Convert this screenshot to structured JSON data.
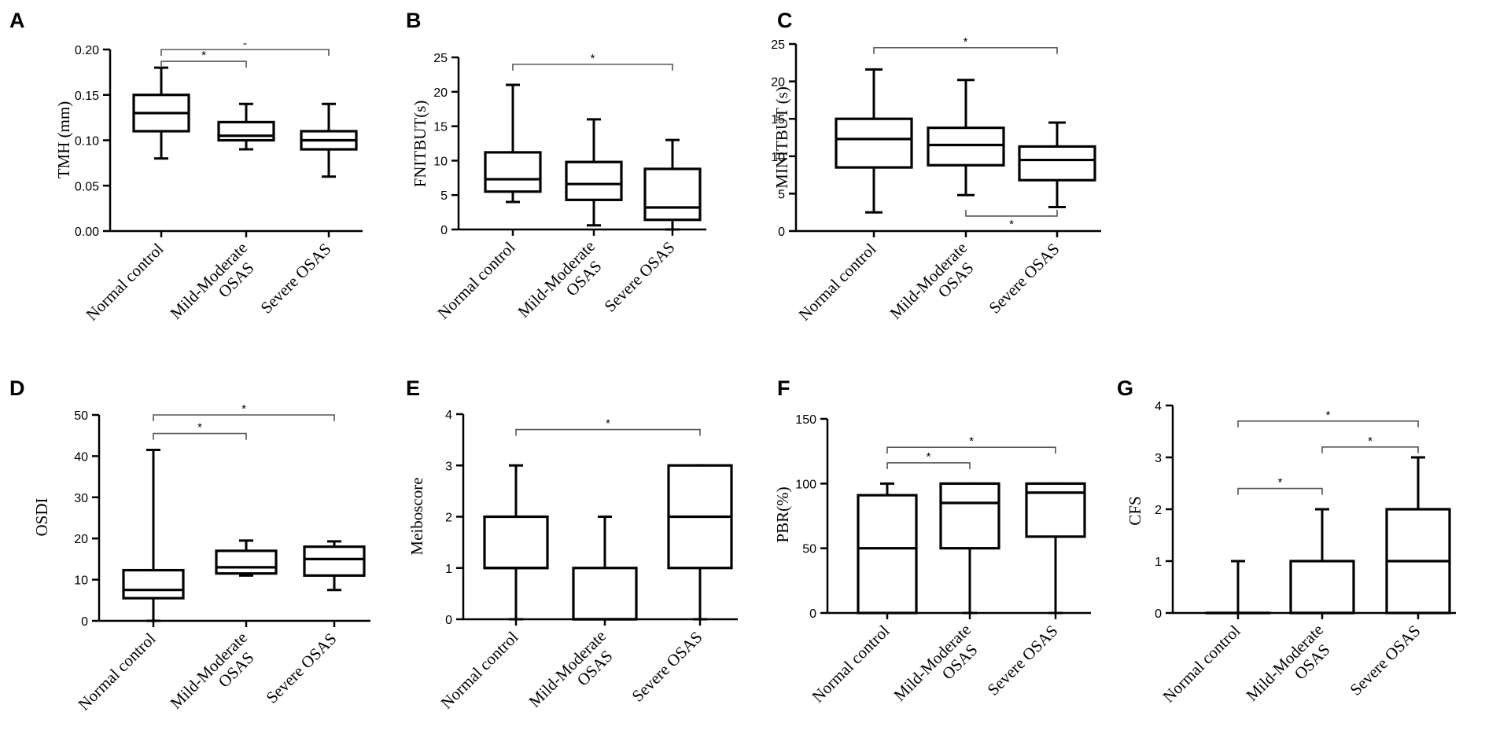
{
  "figure": {
    "categories": [
      "Normal control",
      "Mild-Moderate OSAS",
      "Severe OSAS"
    ],
    "category_label_lines": [
      [
        "Normal control"
      ],
      [
        "Mild-Moderate",
        "OSAS"
      ],
      [
        "Severe OSAS"
      ]
    ]
  },
  "chart_data": [
    {
      "panel": "A",
      "type": "box",
      "ylabel": "TMH (mm)",
      "ylim": [
        0,
        0.2
      ],
      "yticks": [
        0,
        0.05,
        0.1,
        0.15,
        0.2
      ],
      "ytick_labels": [
        "0.00",
        "0.05",
        "0.10",
        "0.15",
        "0.20"
      ],
      "categories": [
        "Normal control",
        "Mild-Moderate OSAS",
        "Severe OSAS"
      ],
      "boxes": [
        {
          "min": 0.08,
          "q1": 0.11,
          "median": 0.13,
          "q3": 0.15,
          "max": 0.18
        },
        {
          "min": 0.09,
          "q1": 0.1,
          "median": 0.105,
          "q3": 0.12,
          "max": 0.14
        },
        {
          "min": 0.06,
          "q1": 0.09,
          "median": 0.1,
          "q3": 0.11,
          "max": 0.14
        }
      ],
      "significance": [
        {
          "from": 0,
          "to": 1,
          "level": 0.187,
          "label": "*",
          "side": "above"
        },
        {
          "from": 0,
          "to": 2,
          "level": 0.2,
          "label": "-",
          "side": "above"
        }
      ]
    },
    {
      "panel": "B",
      "type": "box",
      "ylabel": "FNITBUT(s)",
      "ylim": [
        0,
        25
      ],
      "yticks": [
        0,
        5,
        10,
        15,
        20,
        25
      ],
      "ytick_labels": [
        "0",
        "5",
        "10",
        "15",
        "20",
        "25"
      ],
      "categories": [
        "Normal control",
        "Mild-Moderate OSAS",
        "Severe OSAS"
      ],
      "boxes": [
        {
          "min": 4,
          "q1": 5.5,
          "median": 7.3,
          "q3": 11.2,
          "max": 21
        },
        {
          "min": 0.6,
          "q1": 4.3,
          "median": 6.6,
          "q3": 9.8,
          "max": 16
        },
        {
          "min": 0,
          "q1": 1.4,
          "median": 3.2,
          "q3": 8.8,
          "max": 13
        }
      ],
      "significance": [
        {
          "from": 0,
          "to": 2,
          "level": 24,
          "label": "*",
          "side": "above"
        }
      ]
    },
    {
      "panel": "C",
      "type": "box",
      "ylabel": "MINITBUT (s)",
      "ylim": [
        0,
        25
      ],
      "yticks": [
        0,
        5,
        10,
        15,
        20,
        25
      ],
      "ytick_labels": [
        "0",
        "5",
        "10",
        "15",
        "20",
        "25"
      ],
      "categories": [
        "Normal control",
        "Mild-Moderate OSAS",
        "Severe OSAS"
      ],
      "boxes": [
        {
          "min": 2.5,
          "q1": 8.5,
          "median": 12.3,
          "q3": 15,
          "max": 21.6
        },
        {
          "min": 4.8,
          "q1": 8.8,
          "median": 11.5,
          "q3": 13.8,
          "max": 20.2
        },
        {
          "min": 3.2,
          "q1": 6.8,
          "median": 9.5,
          "q3": 11.3,
          "max": 14.5
        }
      ],
      "significance": [
        {
          "from": 0,
          "to": 2,
          "level": 24.5,
          "label": "*",
          "side": "above"
        },
        {
          "from": 1,
          "to": 2,
          "level": 2,
          "label": "*",
          "side": "below"
        }
      ]
    },
    {
      "panel": "D",
      "type": "box",
      "ylabel": "OSDI",
      "ylim": [
        0,
        50
      ],
      "yticks": [
        0,
        10,
        20,
        30,
        40,
        50
      ],
      "ytick_labels": [
        "0",
        "10",
        "20",
        "30",
        "40",
        "50"
      ],
      "categories": [
        "Normal control",
        "Mild-Moderate OSAS",
        "Severe OSAS"
      ],
      "boxes": [
        {
          "min": 0,
          "q1": 5.5,
          "median": 7.5,
          "q3": 12.3,
          "max": 41.5
        },
        {
          "min": 11,
          "q1": 11.5,
          "median": 13,
          "q3": 17,
          "max": 19.5
        },
        {
          "min": 7.5,
          "q1": 11,
          "median": 15,
          "q3": 18,
          "max": 19.3
        }
      ],
      "significance": [
        {
          "from": 0,
          "to": 1,
          "level": 45.5,
          "label": "*",
          "side": "above"
        },
        {
          "from": 0,
          "to": 2,
          "level": 50,
          "label": "*",
          "side": "above"
        }
      ]
    },
    {
      "panel": "E",
      "type": "box",
      "ylabel": "Meiboscore",
      "ylim": [
        0,
        4
      ],
      "yticks": [
        0,
        1,
        2,
        3,
        4
      ],
      "ytick_labels": [
        "0",
        "1",
        "2",
        "3",
        "4"
      ],
      "categories": [
        "Normal control",
        "Mild-Moderate OSAS",
        "Severe OSAS"
      ],
      "boxes": [
        {
          "min": 0,
          "q1": 1,
          "median": 1,
          "q3": 2,
          "max": 3
        },
        {
          "min": 0,
          "q1": 0,
          "median": 0,
          "q3": 1,
          "max": 2
        },
        {
          "min": 0,
          "q1": 1,
          "median": 2,
          "q3": 3,
          "max": 3
        }
      ],
      "significance": [
        {
          "from": 0,
          "to": 2,
          "level": 3.7,
          "label": "*",
          "side": "above"
        }
      ]
    },
    {
      "panel": "F",
      "type": "box",
      "ylabel": "PBR(%)",
      "ylim": [
        0,
        150
      ],
      "yticks": [
        0,
        50,
        100,
        150
      ],
      "ytick_labels": [
        "0",
        "50",
        "100",
        "150"
      ],
      "categories": [
        "Normal control",
        "Mild-Moderate OSAS",
        "Severe OSAS"
      ],
      "boxes": [
        {
          "min": 0,
          "q1": 0,
          "median": 50,
          "q3": 91,
          "max": 100
        },
        {
          "min": 0,
          "q1": 50,
          "median": 85,
          "q3": 100,
          "max": 100
        },
        {
          "min": 0,
          "q1": 59,
          "median": 93,
          "q3": 100,
          "max": 100
        }
      ],
      "significance": [
        {
          "from": 0,
          "to": 1,
          "level": 116,
          "label": "*",
          "side": "above"
        },
        {
          "from": 0,
          "to": 2,
          "level": 128,
          "label": "*",
          "side": "above"
        }
      ]
    },
    {
      "panel": "G",
      "type": "box",
      "ylabel": "CFS",
      "ylim": [
        0,
        4
      ],
      "yticks": [
        0,
        1,
        2,
        3,
        4
      ],
      "ytick_labels": [
        "0",
        "1",
        "2",
        "3",
        "4"
      ],
      "categories": [
        "Normal control",
        "Mild-Moderate OSAS",
        "Severe OSAS"
      ],
      "boxes": [
        {
          "min": 0,
          "q1": 0,
          "median": 0,
          "q3": 0,
          "max": 1
        },
        {
          "min": 0,
          "q1": 0,
          "median": 0,
          "q3": 1,
          "max": 2
        },
        {
          "min": 0,
          "q1": 0,
          "median": 1,
          "q3": 2,
          "max": 3
        }
      ],
      "significance": [
        {
          "from": 0,
          "to": 1,
          "level": 2.4,
          "label": "*",
          "side": "above"
        },
        {
          "from": 1,
          "to": 2,
          "level": 3.2,
          "label": "*",
          "side": "above"
        },
        {
          "from": 0,
          "to": 2,
          "level": 3.7,
          "label": "*",
          "side": "above"
        }
      ]
    }
  ]
}
